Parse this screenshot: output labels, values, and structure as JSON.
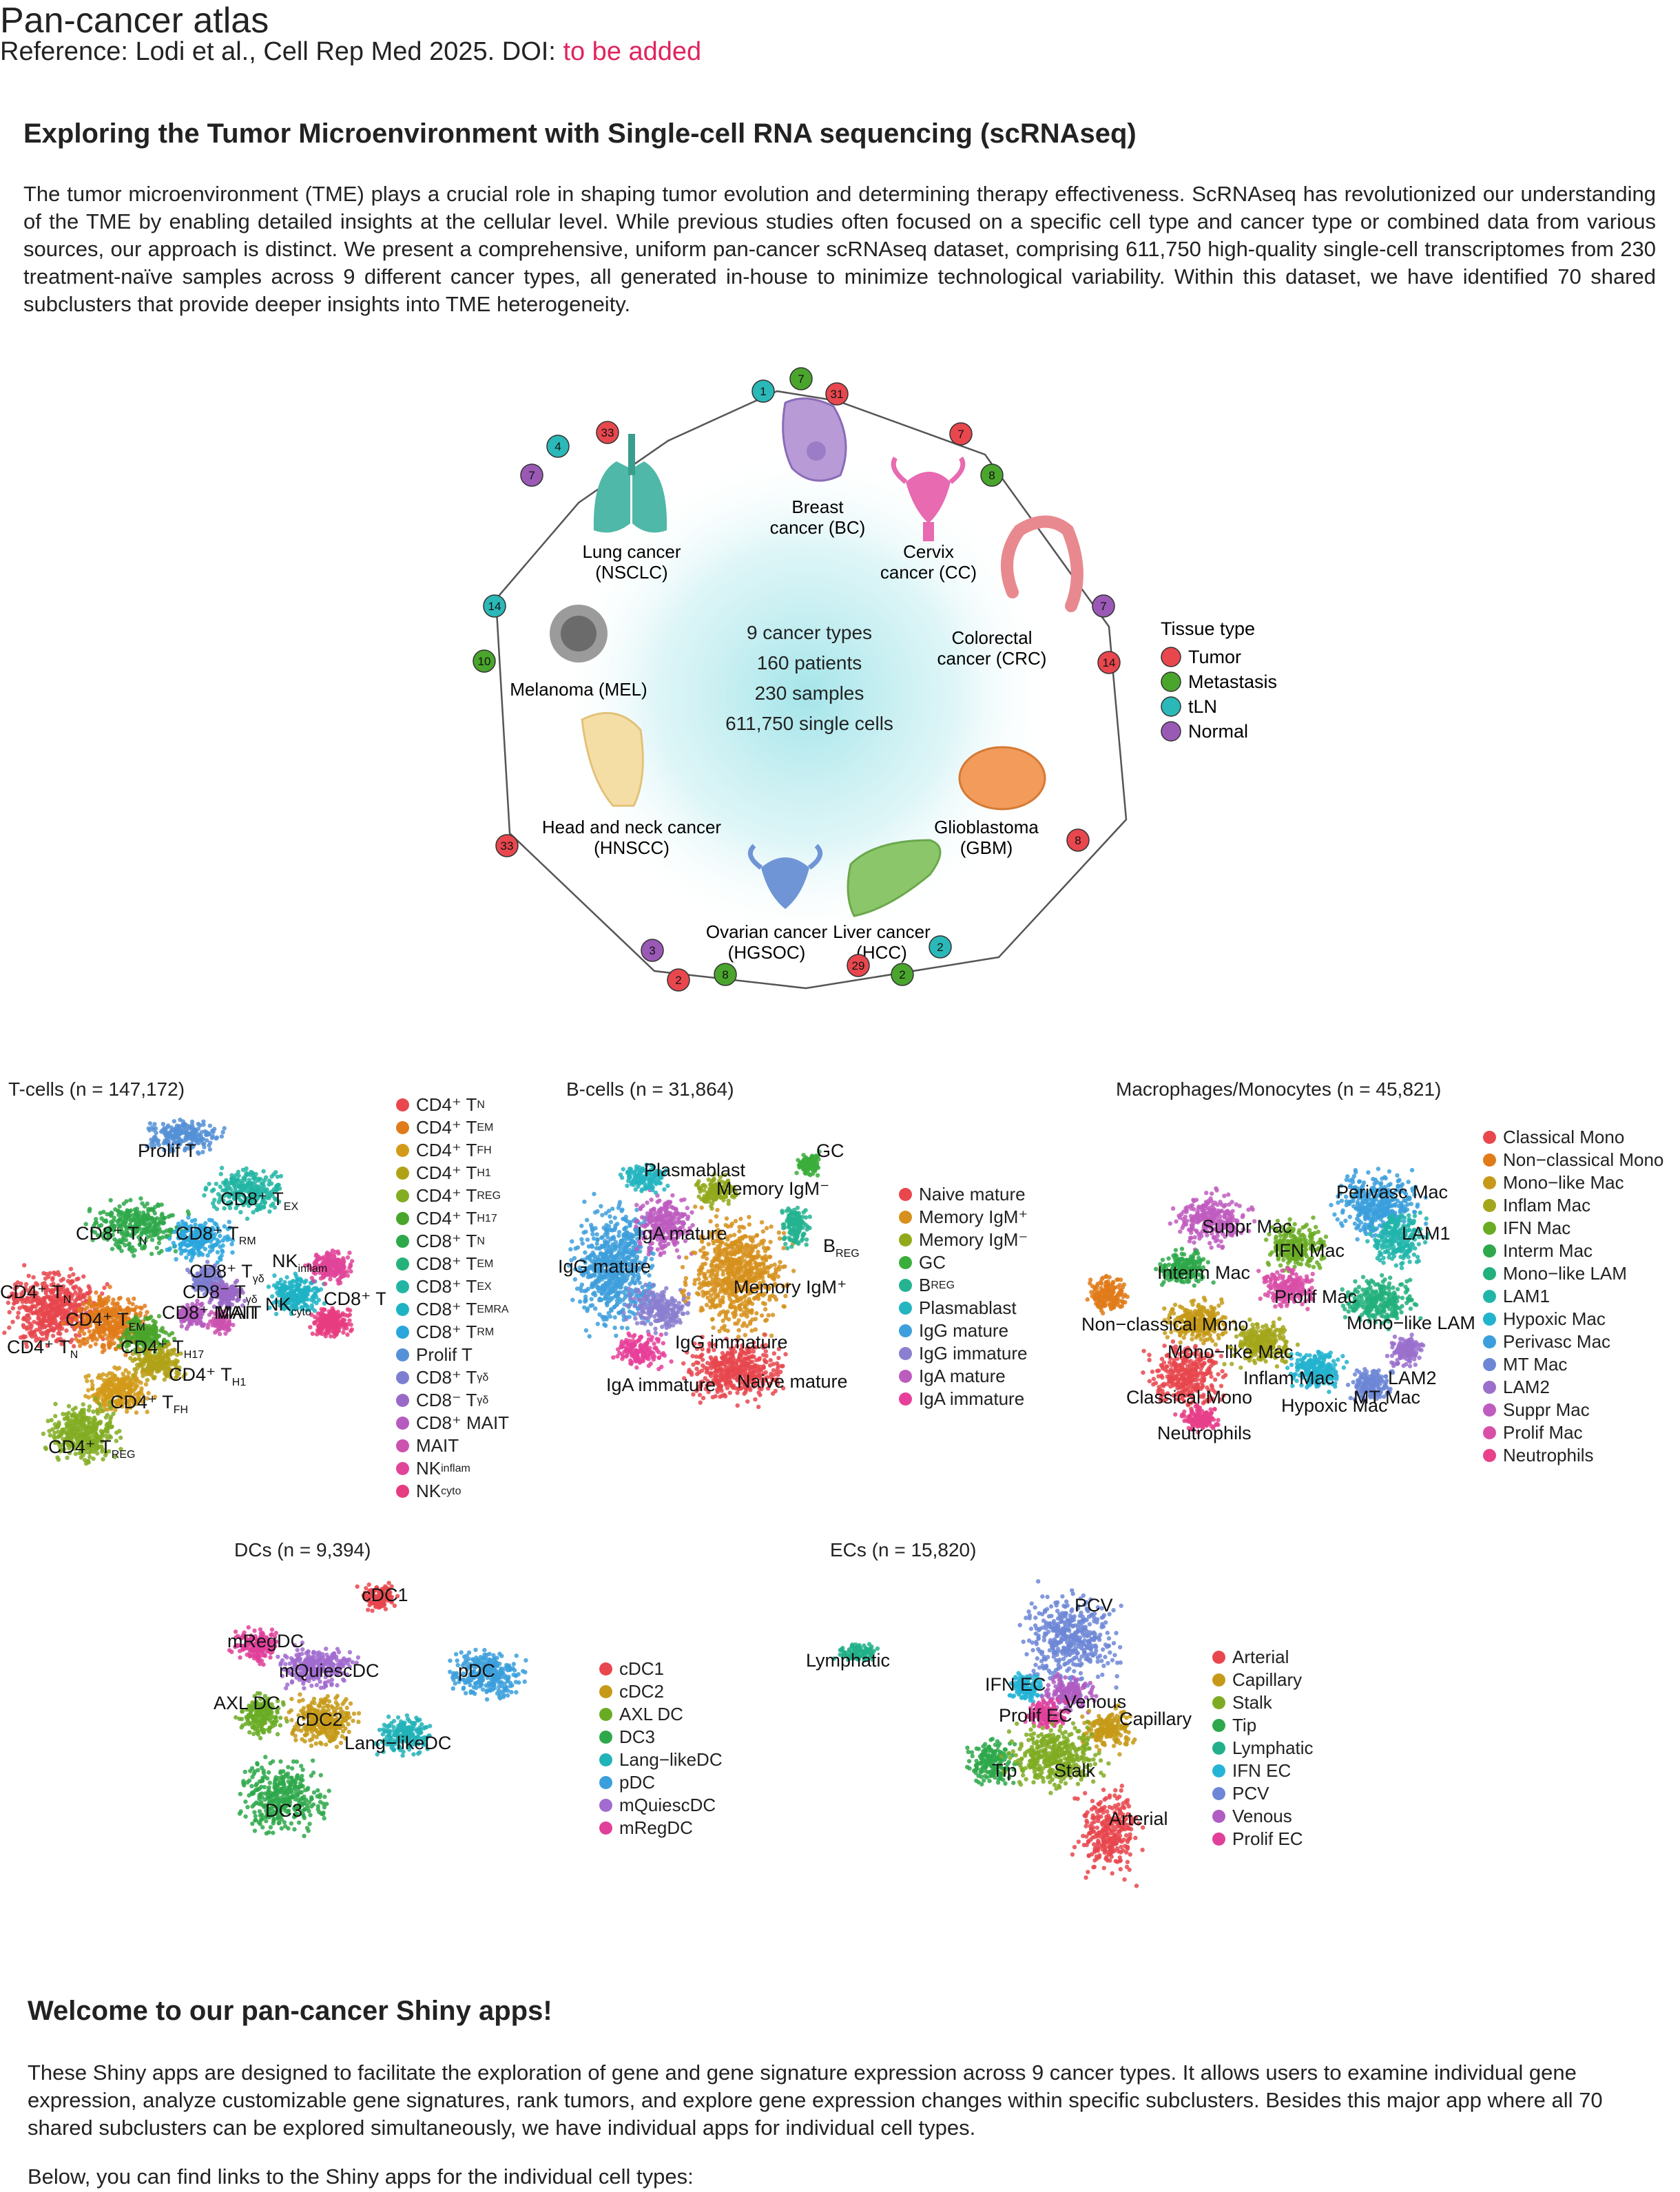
{
  "header": {
    "title": "Pan-cancer atlas",
    "reference_prefix": "Reference: Lodi et al., Cell Rep Med 2025. DOI: ",
    "doi_link": "to be added"
  },
  "intro": {
    "heading": "Exploring the Tumor Microenvironment with Single-cell RNA sequencing (scRNAseq)",
    "paragraph": "The tumor microenvironment (TME) plays a crucial role in shaping tumor evolution and determining therapy effectiveness. ScRNAseq has revolutionized our understanding of the TME by enabling detailed insights at the cellular level. While previous studies often focused on a specific cell type and cancer type or combined data from various sources, our approach is distinct. We present a comprehensive, uniform pan-cancer scRNAseq dataset, comprising 611,750 high-quality single-cell transcriptomes from 230 treatment-naïve samples across 9 different cancer types, all generated in-house to minimize technological variability. Within this dataset, we have identified 70 shared subclusters that provide deeper insights into TME heterogeneity."
  },
  "hero": {
    "stats": [
      "9 cancer types",
      "160 patients",
      "230 samples",
      "611,750 single cells"
    ],
    "cancers": [
      {
        "name": "Breast",
        "abbr": "cancer (BC)"
      },
      {
        "name": "Cervix",
        "abbr": "cancer (CC)"
      },
      {
        "name": "Colorectal",
        "abbr": "cancer (CRC)"
      },
      {
        "name": "Glioblastoma",
        "abbr": "(GBM)"
      },
      {
        "name": "Liver cancer",
        "abbr": "(HCC)"
      },
      {
        "name": "Ovarian cancer",
        "abbr": "(HGSOC)"
      },
      {
        "name": "Head and neck cancer",
        "abbr": "(HNSCC)"
      },
      {
        "name": "Melanoma (MEL)",
        "abbr": ""
      },
      {
        "name": "Lung cancer",
        "abbr": "(NSCLC)"
      }
    ],
    "badges": [
      "1",
      "7",
      "31",
      "7",
      "8",
      "7",
      "14",
      "8",
      "2",
      "2",
      "29",
      "8",
      "2",
      "3",
      "33",
      "10",
      "14",
      "7",
      "4",
      "33"
    ],
    "legend_title": "Tissue type",
    "tissue_types": [
      {
        "label": "Tumor",
        "color": "#e8474e"
      },
      {
        "label": "Metastasis",
        "color": "#4aa52c"
      },
      {
        "label": "tLN",
        "color": "#2bb8b8"
      },
      {
        "label": "Normal",
        "color": "#9b59b6"
      }
    ]
  },
  "umaps": {
    "tcells": {
      "title": "T-cells (n = 147,172)",
      "legend": [
        {
          "label": "CD4⁺ T",
          "sub": "N",
          "color": "#e8474e"
        },
        {
          "label": "CD4⁺ T",
          "sub": "EM",
          "color": "#e07b1a"
        },
        {
          "label": "CD4⁺ T",
          "sub": "FH",
          "color": "#d29a19"
        },
        {
          "label": "CD4⁺ T",
          "sub": "H1",
          "color": "#b0a217"
        },
        {
          "label": "CD4⁺ T",
          "sub": "REG",
          "color": "#83ad23"
        },
        {
          "label": "CD4⁺ T",
          "sub": "H17",
          "color": "#4aa52c"
        },
        {
          "label": "CD8⁺ T",
          "sub": "N",
          "color": "#2ea84a"
        },
        {
          "label": "CD8⁺ T",
          "sub": "EM",
          "color": "#25b27a"
        },
        {
          "label": "CD8⁺ T",
          "sub": "EX",
          "color": "#22b5a3"
        },
        {
          "label": "CD8⁺ T",
          "sub": "EMRA",
          "color": "#1eb3c4"
        },
        {
          "label": "CD8⁺ T",
          "sub": "RM",
          "color": "#2aa6dd"
        },
        {
          "label": "Prolif T",
          "sub": "",
          "color": "#5591d6"
        },
        {
          "label": "CD8⁺ T",
          "sub": "γδ",
          "color": "#7e7ed0"
        },
        {
          "label": "CD8⁻ T",
          "sub": "γδ",
          "color": "#9a69c7"
        },
        {
          "label": "CD8⁺ MAIT",
          "sub": "",
          "color": "#b55cbf"
        },
        {
          "label": "MAIT",
          "sub": "",
          "color": "#cc52b0"
        },
        {
          "label": "NK",
          "sub": "inflam",
          "color": "#e04599"
        },
        {
          "label": "NK",
          "sub": "cyto",
          "color": "#e83c80"
        }
      ]
    },
    "bcells": {
      "title": "B-cells (n = 31,864)",
      "legend": [
        {
          "label": "Naive mature",
          "sub": "",
          "color": "#e8474e"
        },
        {
          "label": "Memory IgM⁺",
          "sub": "",
          "color": "#d6901c"
        },
        {
          "label": "Memory IgM⁻",
          "sub": "",
          "color": "#93a91c"
        },
        {
          "label": "GC",
          "sub": "",
          "color": "#3bad3b"
        },
        {
          "label": "B",
          "sub": "REG",
          "color": "#25b391"
        },
        {
          "label": "Plasmablast",
          "sub": "",
          "color": "#23b5c0"
        },
        {
          "label": "IgG mature",
          "sub": "",
          "color": "#3e9fdc"
        },
        {
          "label": "IgG immature",
          "sub": "",
          "color": "#8a7fd0"
        },
        {
          "label": "IgA mature",
          "sub": "",
          "color": "#bd5cbf"
        },
        {
          "label": "IgA immature",
          "sub": "",
          "color": "#e8409a"
        }
      ]
    },
    "macro": {
      "title": "Macrophages/Monocytes (n = 45,821)",
      "legend": [
        {
          "label": "Classical Mono",
          "sub": "",
          "color": "#e8474e"
        },
        {
          "label": "Non−classical Mono",
          "sub": "",
          "color": "#e07b1a"
        },
        {
          "label": "Mono−like Mac",
          "sub": "",
          "color": "#c69a18"
        },
        {
          "label": "Inflam Mac",
          "sub": "",
          "color": "#a3a61a"
        },
        {
          "label": "IFN Mac",
          "sub": "",
          "color": "#6aab24"
        },
        {
          "label": "Interm Mac",
          "sub": "",
          "color": "#2ea84a"
        },
        {
          "label": "Mono−like LAM",
          "sub": "",
          "color": "#22b07c"
        },
        {
          "label": "LAM1",
          "sub": "",
          "color": "#21b5aa"
        },
        {
          "label": "Hypoxic Mac",
          "sub": "",
          "color": "#22b3cf"
        },
        {
          "label": "Perivasc Mac",
          "sub": "",
          "color": "#3a9fdc"
        },
        {
          "label": "MT Mac",
          "sub": "",
          "color": "#6d87d6"
        },
        {
          "label": "LAM2",
          "sub": "",
          "color": "#9a70cc"
        },
        {
          "label": "Suppr Mac",
          "sub": "",
          "color": "#bf5cbf"
        },
        {
          "label": "Prolif Mac",
          "sub": "",
          "color": "#d94fa8"
        },
        {
          "label": "Neutrophils",
          "sub": "",
          "color": "#e8408a"
        }
      ]
    },
    "dcs": {
      "title": "DCs (n = 9,394)",
      "legend": [
        {
          "label": "cDC1",
          "sub": "",
          "color": "#e8474e"
        },
        {
          "label": "cDC2",
          "sub": "",
          "color": "#c69a18"
        },
        {
          "label": "AXL DC",
          "sub": "",
          "color": "#6aab24"
        },
        {
          "label": "DC3",
          "sub": "",
          "color": "#2ea84a"
        },
        {
          "label": "Lang−likeDC",
          "sub": "",
          "color": "#22b3b8"
        },
        {
          "label": "pDC",
          "sub": "",
          "color": "#3a9fdc"
        },
        {
          "label": "mQuiescDC",
          "sub": "",
          "color": "#a16bcf"
        },
        {
          "label": "mRegDC",
          "sub": "",
          "color": "#e0409a"
        }
      ]
    },
    "ecs": {
      "title": "ECs (n = 15,820)",
      "legend": [
        {
          "label": "Arterial",
          "sub": "",
          "color": "#e8474e"
        },
        {
          "label": "Capillary",
          "sub": "",
          "color": "#c69a18"
        },
        {
          "label": "Stalk",
          "sub": "",
          "color": "#7fab22"
        },
        {
          "label": "Tip",
          "sub": "",
          "color": "#2ea84a"
        },
        {
          "label": "Lymphatic",
          "sub": "",
          "color": "#22b08a"
        },
        {
          "label": "IFN EC",
          "sub": "",
          "color": "#26b4d6"
        },
        {
          "label": "PCV",
          "sub": "",
          "color": "#6d87d6"
        },
        {
          "label": "Venous",
          "sub": "",
          "color": "#b05cc2"
        },
        {
          "label": "Prolif EC",
          "sub": "",
          "color": "#e0409a"
        }
      ]
    }
  },
  "welcome": {
    "heading": "Welcome to our pan-cancer Shiny apps!",
    "paragraph": "These Shiny apps are designed to facilitate the exploration of gene and gene signature expression across 9 cancer types. It allows users to examine individual gene expression, analyze customizable gene signatures, rank tumors, and explore gene expression changes within specific subclusters. Besides this major app where all 70 shared subclusters can be explored simultaneously, we have individual apps for individual cell types.",
    "below": "Below, you can find links to the Shiny apps for the individual cell types:"
  }
}
